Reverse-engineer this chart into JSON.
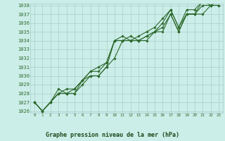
{
  "x": [
    0,
    1,
    2,
    3,
    4,
    5,
    6,
    7,
    8,
    9,
    10,
    11,
    12,
    13,
    14,
    15,
    16,
    17,
    18,
    19,
    20,
    21,
    22,
    23
  ],
  "line1": [
    1027.0,
    1026.0,
    1027.0,
    1028.0,
    1028.0,
    1028.0,
    1029.5,
    1030.0,
    1030.0,
    1031.0,
    1034.0,
    1034.0,
    1034.0,
    1034.0,
    1034.5,
    1035.0,
    1035.5,
    1037.0,
    1035.0,
    1037.0,
    1037.0,
    1038.0,
    1038.0,
    1038.0
  ],
  "line2": [
    1027.0,
    1026.0,
    1027.0,
    1028.0,
    1028.0,
    1028.0,
    1029.0,
    1030.0,
    1030.0,
    1031.0,
    1032.0,
    1034.0,
    1034.0,
    1034.0,
    1034.0,
    1035.0,
    1035.0,
    1037.0,
    1035.0,
    1037.0,
    1037.0,
    1037.0,
    1038.0,
    1038.0
  ],
  "line3": [
    1027.0,
    1026.0,
    1027.0,
    1028.5,
    1028.0,
    1028.5,
    1029.5,
    1030.5,
    1031.0,
    1031.5,
    1034.0,
    1034.0,
    1034.5,
    1034.0,
    1034.5,
    1035.0,
    1036.0,
    1037.5,
    1035.5,
    1037.0,
    1037.0,
    1038.5,
    1038.0,
    1038.5
  ],
  "line4": [
    1027.0,
    1026.0,
    1027.0,
    1028.0,
    1028.5,
    1028.5,
    1029.5,
    1030.5,
    1030.5,
    1031.5,
    1034.0,
    1034.5,
    1034.0,
    1034.5,
    1035.0,
    1035.5,
    1036.5,
    1037.5,
    1035.5,
    1037.5,
    1037.5,
    1038.5,
    1038.5,
    1038.5
  ],
  "ylim_min": 1026,
  "ylim_max": 1038,
  "line_color": "#2d6a2d",
  "bg_color": "#cceee8",
  "grid_color": "#aacccc",
  "xlabel": "Graphe pression niveau de la mer (hPa)",
  "xlabel_color": "#1a4a1a",
  "tick_color": "#2d6a2d",
  "marker": "D",
  "bottom_bg": "#c8e8d8"
}
